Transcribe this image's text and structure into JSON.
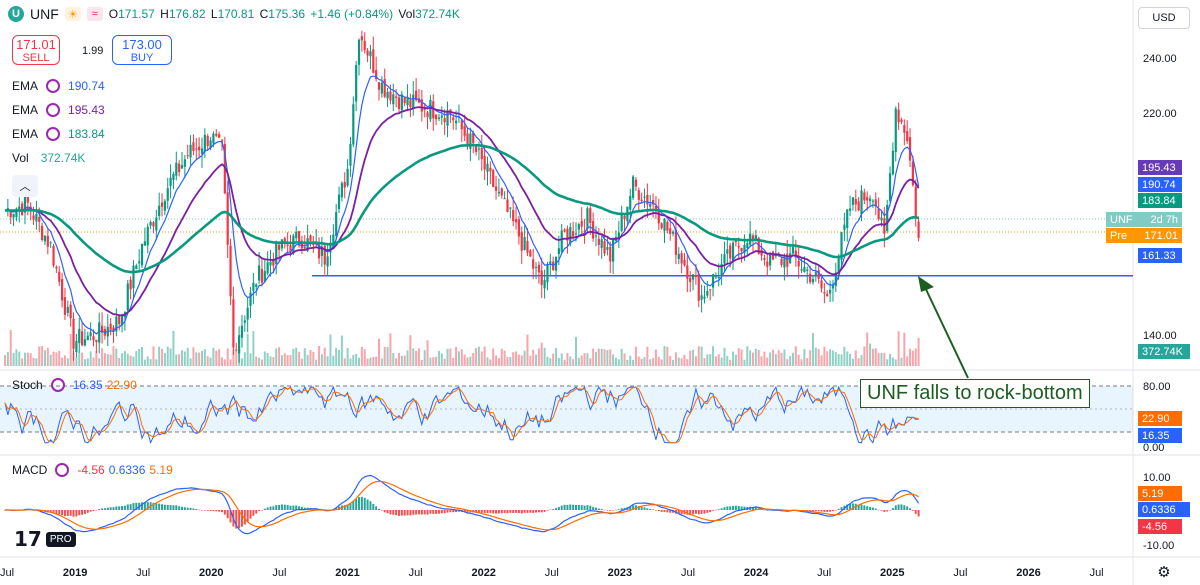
{
  "header": {
    "symbol": "UNF",
    "ohlc": {
      "o_label": "O",
      "o": "171.57",
      "h_label": "H",
      "h": "176.82",
      "l_label": "L",
      "l": "170.81",
      "c_label": "C",
      "c": "175.36",
      "chg": "+1.46 (+0.84%)",
      "vol_label": "Vol",
      "vol": "372.74K"
    }
  },
  "trade": {
    "sell_price": "171.01",
    "sell_label": "SELL",
    "spread": "1.99",
    "buy_price": "173.00",
    "buy_label": "BUY"
  },
  "indicators": [
    {
      "label": "EMA",
      "value": "190.74",
      "color": "#2962ff"
    },
    {
      "label": "EMA",
      "value": "195.43",
      "color": "#7b1fa2"
    },
    {
      "label": "EMA",
      "value": "183.84",
      "color": "#089981"
    }
  ],
  "volume_label": {
    "label": "Vol",
    "value": "372.74K"
  },
  "currency": "USD",
  "annotation": "UNF falls to rock-bottom",
  "price_labels": [
    {
      "text": "195.43",
      "color": "#673ab7"
    },
    {
      "text": "190.74",
      "color": "#2962ff"
    },
    {
      "text": "183.84",
      "color": "#089981"
    },
    {
      "text": "UNF",
      "text2": "2d 7h",
      "color": "#80cbc4"
    },
    {
      "text": "Pre",
      "text2": "171.01",
      "color": "#ff9800"
    },
    {
      "text": "161.33",
      "color": "#2962ff"
    },
    {
      "text": "372.74K",
      "color": "#26a69a"
    }
  ],
  "stoch": {
    "label": "Stoch",
    "k": "16.35",
    "d": "22.90",
    "k_color": "#2962ff",
    "d_color": "#ff6d00",
    "axis": [
      "80.00",
      "0.00"
    ],
    "upper": 80,
    "lower": 20
  },
  "macd": {
    "label": "MACD",
    "hist": "-4.56",
    "macd": "0.6336",
    "signal": "5.19",
    "axis": [
      "10.00",
      "-10.00"
    ]
  },
  "chart_data": {
    "type": "candlestick",
    "price_axis": [
      "240.00",
      "220.00",
      "140.00"
    ],
    "ylim": [
      128,
      258
    ],
    "support_level": 161.33,
    "time_ticks": [
      "Jul",
      "2019",
      "Jul",
      "2020",
      "Jul",
      "2021",
      "Jul",
      "2022",
      "Jul",
      "2023",
      "Jul",
      "2024",
      "Jul",
      "2025",
      "Jul",
      "2026",
      "Jul"
    ],
    "close_path": [
      {
        "t": "2018-07",
        "close": 185
      },
      {
        "t": "2018-09",
        "close": 187
      },
      {
        "t": "2018-11",
        "close": 172
      },
      {
        "t": "2019-01",
        "close": 138
      },
      {
        "t": "2019-03",
        "close": 140
      },
      {
        "t": "2019-05",
        "close": 145
      },
      {
        "t": "2019-07",
        "close": 172
      },
      {
        "t": "2019-09",
        "close": 192
      },
      {
        "t": "2019-11",
        "close": 205
      },
      {
        "t": "2020-01",
        "close": 212
      },
      {
        "t": "2020-02",
        "close": 206
      },
      {
        "t": "2020-03",
        "close": 135
      },
      {
        "t": "2020-05",
        "close": 160
      },
      {
        "t": "2020-07",
        "close": 171
      },
      {
        "t": "2020-09",
        "close": 175
      },
      {
        "t": "2020-11",
        "close": 168
      },
      {
        "t": "2021-01",
        "close": 200
      },
      {
        "t": "2021-02",
        "close": 250
      },
      {
        "t": "2021-04",
        "close": 230
      },
      {
        "t": "2021-06",
        "close": 224
      },
      {
        "t": "2021-08",
        "close": 222
      },
      {
        "t": "2021-10",
        "close": 220
      },
      {
        "t": "2021-12",
        "close": 208
      },
      {
        "t": "2022-02",
        "close": 192
      },
      {
        "t": "2022-04",
        "close": 176
      },
      {
        "t": "2022-06",
        "close": 158
      },
      {
        "t": "2022-08",
        "close": 176
      },
      {
        "t": "2022-10",
        "close": 182
      },
      {
        "t": "2022-12",
        "close": 168
      },
      {
        "t": "2023-02",
        "close": 194
      },
      {
        "t": "2023-04",
        "close": 186
      },
      {
        "t": "2023-06",
        "close": 170
      },
      {
        "t": "2023-08",
        "close": 154
      },
      {
        "t": "2023-10",
        "close": 166
      },
      {
        "t": "2023-12",
        "close": 176
      },
      {
        "t": "2024-02",
        "close": 166
      },
      {
        "t": "2024-04",
        "close": 168
      },
      {
        "t": "2024-06",
        "close": 160
      },
      {
        "t": "2024-07",
        "close": 153
      },
      {
        "t": "2024-09",
        "close": 186
      },
      {
        "t": "2024-11",
        "close": 192
      },
      {
        "t": "2024-12",
        "close": 174
      },
      {
        "t": "2025-01",
        "close": 222
      },
      {
        "t": "2025-02",
        "close": 212
      },
      {
        "t": "2025-03",
        "close": 175
      }
    ],
    "ema_values": {
      "ema1": 190.74,
      "ema2": 195.43,
      "ema3": 183.84
    }
  }
}
